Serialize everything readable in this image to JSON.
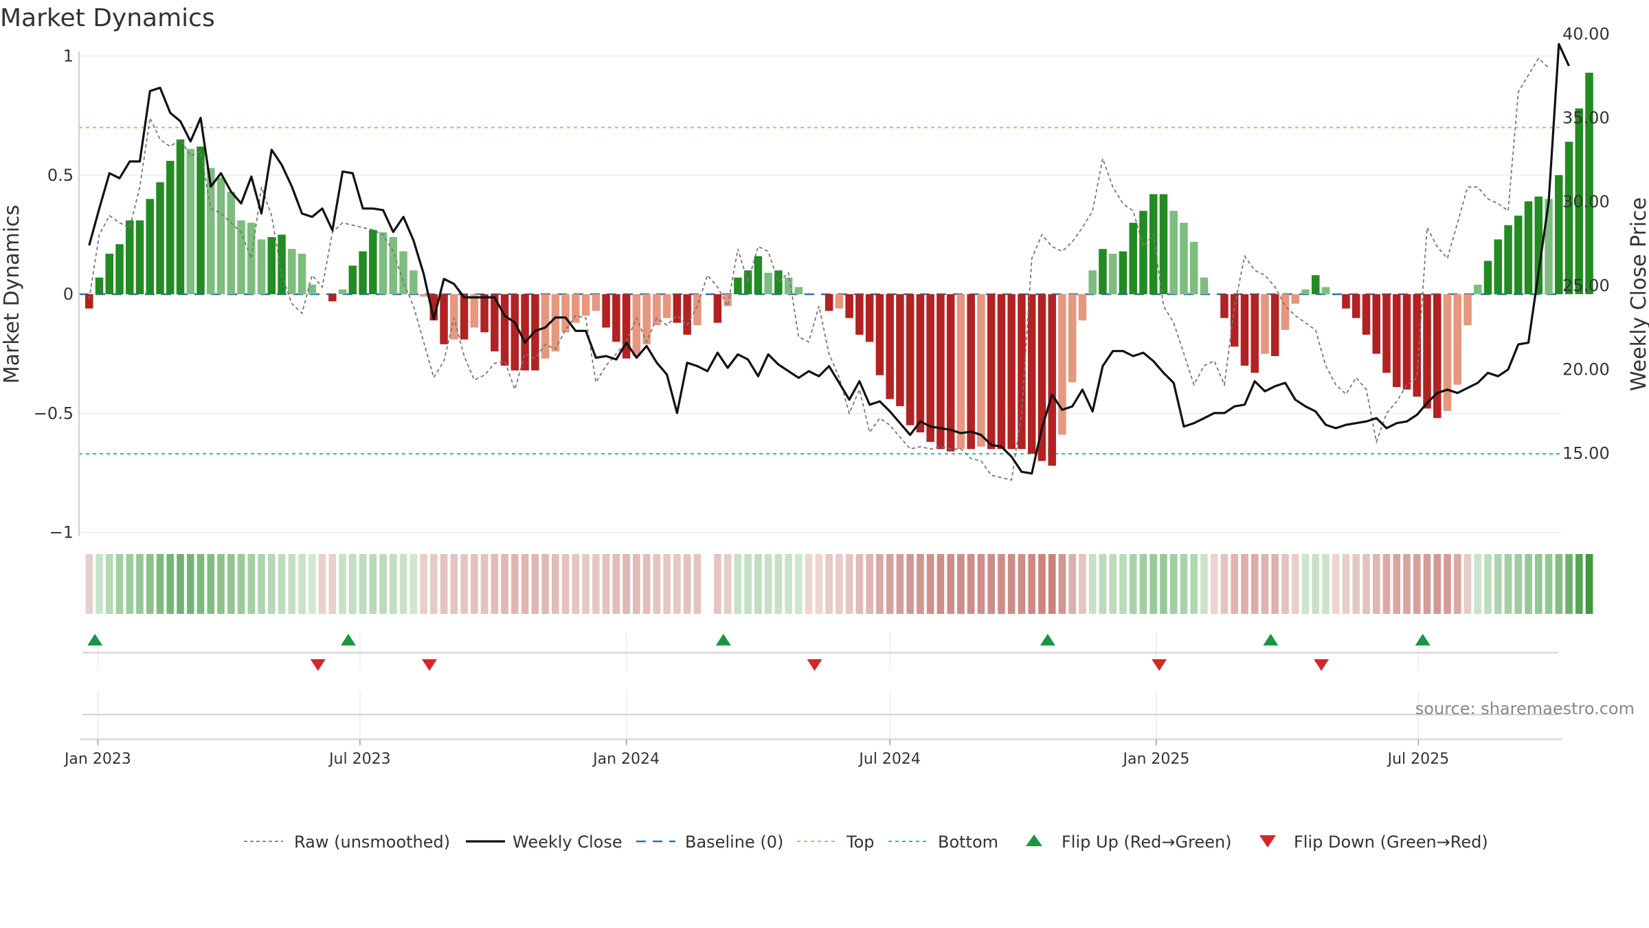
{
  "chart_data": {
    "type": "bar",
    "title": "Market Dynamics",
    "ylabel_left": "Market Dynamics",
    "ylabel_right": "Weekly Close Price",
    "source": "source: sharemaestro.com",
    "y_left_range": [
      -1,
      1
    ],
    "y_right_range": [
      11.2,
      40.8
    ],
    "x_range": [
      "2022-12-19",
      "2025-10-08"
    ],
    "left_ticks": [
      {
        "v": 1,
        "label": "1"
      },
      {
        "v": 0.5,
        "label": "0.5"
      },
      {
        "v": 0,
        "label": "0"
      },
      {
        "v": -0.5,
        "label": "−0.5"
      },
      {
        "v": -1,
        "label": "−1"
      }
    ],
    "right_ticks": [
      {
        "v": 40,
        "label": "40.00"
      },
      {
        "v": 35,
        "label": "35.00"
      },
      {
        "v": 30,
        "label": "30.00"
      },
      {
        "v": 25,
        "label": "25.00"
      },
      {
        "v": 20,
        "label": "20.00"
      },
      {
        "v": 15,
        "label": "15.00"
      }
    ],
    "date_ticks": [
      {
        "date": "2023-01-01",
        "label": "Jan 2023"
      },
      {
        "date": "2023-07-01",
        "label": "Jul 2023"
      },
      {
        "date": "2024-01-01",
        "label": "Jan 2024"
      },
      {
        "date": "2024-07-01",
        "label": "Jul 2024"
      },
      {
        "date": "2025-01-01",
        "label": "Jan 2025"
      },
      {
        "date": "2025-07-01",
        "label": "Jul 2025"
      }
    ],
    "grid": true,
    "legend_position": "bottom",
    "levels": {
      "top": 0.7,
      "bottom": -0.67,
      "baseline": 0
    },
    "colors": {
      "green_strong": "#228b22",
      "green_light": "#7dbd7d",
      "red_strong": "#b22222",
      "red_light": "#e6977e",
      "raw": "#777777",
      "close": "#111111",
      "baseline": "#1f77b4",
      "top": "#f4a261",
      "bottom": "#17becf",
      "flip_up": "#1a9641",
      "flip_down": "#d62728"
    },
    "week_start": "2022-12-26",
    "bars": [
      -0.06,
      0.07,
      0.17,
      0.21,
      0.31,
      0.31,
      0.4,
      0.47,
      0.56,
      0.65,
      0.61,
      0.62,
      0.53,
      0.49,
      0.43,
      0.31,
      0.3,
      0.23,
      0.24,
      0.25,
      0.19,
      0.17,
      0.04,
      0.0,
      -0.03,
      0.02,
      0.12,
      0.18,
      0.27,
      0.26,
      0.24,
      0.18,
      0.1,
      -0.01,
      -0.11,
      -0.21,
      -0.19,
      -0.19,
      -0.14,
      -0.16,
      -0.24,
      -0.3,
      -0.32,
      -0.32,
      -0.32,
      -0.27,
      -0.24,
      -0.16,
      -0.12,
      -0.09,
      -0.07,
      -0.14,
      -0.2,
      -0.27,
      -0.26,
      -0.21,
      -0.13,
      -0.1,
      -0.12,
      -0.17,
      -0.13,
      0.0,
      -0.12,
      -0.05,
      0.07,
      0.1,
      0.16,
      0.09,
      0.1,
      0.07,
      0.03,
      0.0,
      0.0,
      -0.07,
      -0.06,
      -0.1,
      -0.17,
      -0.2,
      -0.34,
      -0.44,
      -0.47,
      -0.55,
      -0.58,
      -0.62,
      -0.65,
      -0.66,
      -0.65,
      -0.65,
      -0.64,
      -0.65,
      -0.65,
      -0.65,
      -0.65,
      -0.67,
      -0.7,
      -0.72,
      -0.59,
      -0.37,
      -0.11,
      0.1,
      0.19,
      0.17,
      0.18,
      0.3,
      0.35,
      0.42,
      0.42,
      0.35,
      0.3,
      0.22,
      0.07,
      0.0,
      -0.1,
      -0.22,
      -0.3,
      -0.33,
      -0.25,
      -0.26,
      -0.15,
      -0.04,
      0.02,
      0.08,
      0.03,
      0.0,
      -0.06,
      -0.1,
      -0.17,
      -0.25,
      -0.33,
      -0.39,
      -0.4,
      -0.43,
      -0.48,
      -0.52,
      -0.49,
      -0.38,
      -0.13,
      0.04,
      0.14,
      0.23,
      0.29,
      0.33,
      0.39,
      0.41,
      0.4,
      0.5,
      0.64,
      0.78,
      0.93
    ],
    "raw": [
      -0.02,
      0.25,
      0.33,
      0.3,
      0.28,
      0.45,
      0.74,
      0.65,
      0.62,
      0.65,
      0.58,
      0.6,
      0.36,
      0.34,
      0.3,
      0.26,
      0.15,
      0.45,
      0.33,
      0.08,
      -0.04,
      -0.08,
      0.08,
      0.03,
      0.26,
      0.3,
      0.29,
      0.28,
      0.27,
      0.25,
      0.18,
      0.05,
      -0.05,
      -0.2,
      -0.35,
      -0.28,
      -0.1,
      -0.26,
      -0.36,
      -0.34,
      -0.29,
      -0.28,
      -0.4,
      -0.25,
      -0.27,
      -0.21,
      -0.23,
      -0.15,
      -0.09,
      -0.1,
      -0.37,
      -0.3,
      -0.25,
      -0.2,
      -0.1,
      -0.2,
      -0.1,
      -0.13,
      -0.09,
      -0.13,
      -0.05,
      0.08,
      0.03,
      -0.05,
      0.19,
      0.05,
      0.2,
      0.18,
      0.05,
      0.09,
      -0.18,
      -0.2,
      -0.05,
      -0.25,
      -0.35,
      -0.5,
      -0.4,
      -0.58,
      -0.52,
      -0.55,
      -0.6,
      -0.65,
      -0.64,
      -0.65,
      -0.64,
      -0.65,
      -0.65,
      -0.69,
      -0.7,
      -0.76,
      -0.77,
      -0.78,
      -0.5,
      0.15,
      0.25,
      0.2,
      0.18,
      0.22,
      0.28,
      0.35,
      0.57,
      0.45,
      0.38,
      0.35,
      0.2,
      0.25,
      -0.05,
      -0.12,
      -0.25,
      -0.38,
      -0.3,
      -0.28,
      -0.38,
      -0.05,
      0.16,
      0.1,
      0.08,
      0.03,
      -0.05,
      -0.09,
      -0.12,
      -0.15,
      -0.3,
      -0.38,
      -0.42,
      -0.35,
      -0.4,
      -0.62,
      -0.5,
      -0.45,
      -0.38,
      -0.35,
      0.28,
      0.2,
      0.15,
      0.3,
      0.45,
      0.45,
      0.4,
      0.38,
      0.35,
      0.85,
      0.92,
      0.99,
      0.95
    ],
    "close": [
      27.4,
      29.6,
      31.7,
      31.4,
      32.4,
      32.4,
      36.6,
      36.8,
      35.3,
      34.8,
      33.6,
      35.0,
      30.9,
      31.7,
      30.6,
      29.9,
      31.5,
      29.3,
      33.1,
      32.2,
      30.9,
      29.3,
      29.1,
      29.6,
      28.3,
      31.8,
      31.7,
      29.6,
      29.6,
      29.5,
      28.2,
      29.1,
      27.7,
      25.7,
      23.0,
      25.4,
      25.1,
      24.3,
      24.3,
      24.3,
      24.3,
      23.2,
      22.8,
      21.6,
      22.3,
      22.5,
      23.1,
      23.1,
      22.3,
      22.3,
      20.7,
      20.8,
      20.6,
      21.6,
      20.7,
      21.4,
      20.4,
      19.7,
      17.4,
      20.4,
      20.2,
      19.9,
      21.0,
      20.1,
      20.9,
      20.6,
      19.6,
      20.9,
      20.3,
      19.9,
      19.5,
      19.9,
      19.6,
      20.2,
      19.2,
      18.2,
      19.3,
      17.9,
      18.1,
      17.5,
      16.8,
      16.1,
      16.9,
      16.6,
      16.5,
      16.4,
      16.2,
      16.3,
      16.1,
      15.5,
      15.4,
      14.8,
      13.9,
      13.8,
      16.5,
      18.5,
      17.6,
      17.8,
      18.8,
      17.5,
      20.2,
      21.1,
      21.1,
      20.8,
      21.0,
      20.5,
      19.8,
      19.2,
      16.6,
      16.8,
      17.1,
      17.4,
      17.4,
      17.8,
      17.9,
      19.3,
      18.7,
      19.0,
      19.2,
      18.2,
      17.8,
      17.5,
      16.7,
      16.5,
      16.7,
      16.8,
      16.9,
      17.1,
      16.5,
      16.8,
      16.9,
      17.3,
      18.0,
      18.6,
      18.8,
      18.6,
      18.9,
      19.2,
      19.8,
      19.6,
      20.0,
      21.5,
      21.6,
      25.8,
      30.0,
      39.4,
      38.1
    ],
    "strip_shades": [
      "#e8cfcc",
      "#c9e3c9",
      "#b6dab6",
      "#a3d0a3",
      "#9fcc9f",
      "#96c896",
      "#8ac28a",
      "#7dbb7d",
      "#75b675",
      "#6fb26f",
      "#74b574",
      "#7cba7c",
      "#83bd83",
      "#8cc28c",
      "#91c591",
      "#9bca9b",
      "#a5cfa5",
      "#aed4ae",
      "#b6d8b6",
      "#bddcbd",
      "#c3dfc3",
      "#c9e3c9",
      "#d2e7d2",
      "#e9d0cd",
      "#e8d0cd",
      "#c7e2c7",
      "#c1dfc1",
      "#bcdcbc",
      "#b9dab9",
      "#bcdcbc",
      "#c1dfc1",
      "#c8e2c8",
      "#d0e6d0",
      "#e6cfcc",
      "#e6cac7",
      "#e4c4c1",
      "#e4c4c1",
      "#e4c4c1",
      "#e3c3c0",
      "#e3c1be",
      "#e1bcb9",
      "#e0b8b5",
      "#dfb6b3",
      "#dfb6b3",
      "#dfb6b3",
      "#e0b9b6",
      "#e1bcb9",
      "#e3c2bf",
      "#e4c5c2",
      "#e5c8c5",
      "#e6c9c6",
      "#e3c2bf",
      "#e1bdba",
      "#e0b8b5",
      "#e0b9b6",
      "#e2bdba",
      "#e4c4c1",
      "#e5c8c5",
      "#e5c7c4",
      "#e3c2bf",
      "#e4c5c2",
      "#ffffff",
      "#e4c5c2",
      "#e6cbc8",
      "#c8e2c8",
      "#c4e0c4",
      "#bfddbf",
      "#c5e1c5",
      "#c6e1c6",
      "#c9e3c9",
      "#cfe5cf",
      "#ebd4d1",
      "#ebd4d1",
      "#e6cac7",
      "#e6cbc8",
      "#e4c6c3",
      "#e0bbb8",
      "#dfb6b3",
      "#d9a8a4",
      "#d5a09c",
      "#d49d99",
      "#d29793",
      "#d1948f",
      "#cf908b",
      "#ce8d88",
      "#ce8c87",
      "#ce8d88",
      "#ce8d88",
      "#ce8e89",
      "#ce8d88",
      "#ce8d88",
      "#ce8d88",
      "#ce8d88",
      "#cd8a85",
      "#cb8580",
      "#ca827d",
      "#d09690",
      "#dcb0ac",
      "#e4c5c2",
      "#c5e1c5",
      "#badbba",
      "#bcdcbc",
      "#bbdbbb",
      "#a9d2a9",
      "#a2cea2",
      "#99c999",
      "#99c999",
      "#a2cea2",
      "#a9d2a9",
      "#b3d7b3",
      "#cae3ca",
      "#ebd4d1",
      "#e4c4c1",
      "#dfb6b3",
      "#dcb0ac",
      "#dbaca8",
      "#deb3af",
      "#ddb1ad",
      "#e3c2bf",
      "#e8cfcc",
      "#cde4cd",
      "#c7e2c7",
      "#cbe3cb",
      "#ebd4d1",
      "#e7cdca",
      "#e5c8c5",
      "#e3c2bf",
      "#dfb6b3",
      "#dba9a5",
      "#d8a5a1",
      "#d8a4a0",
      "#d6a19d",
      "#d49d99",
      "#d29894",
      "#d49b97",
      "#d9a8a4",
      "#e6cbc8",
      "#cbe3cb",
      "#bcdcbc",
      "#aed4ae",
      "#a4cfa4",
      "#9fcc9f",
      "#96c896",
      "#94c694",
      "#95c795",
      "#84be84",
      "#6db16d",
      "#55a555",
      "#3d9a3d"
    ],
    "flips_up": [
      "2022-12-30",
      "2023-06-23",
      "2024-03-08",
      "2024-10-18",
      "2025-03-21",
      "2025-07-04"
    ],
    "flips_down": [
      "2023-06-02",
      "2023-08-18",
      "2024-05-10",
      "2025-01-03",
      "2025-04-25"
    ],
    "legend": [
      {
        "type": "raw",
        "label": "Raw (unsmoothed)"
      },
      {
        "type": "close",
        "label": "Weekly Close"
      },
      {
        "type": "baseline",
        "label": "Baseline (0)"
      },
      {
        "type": "top",
        "label": "Top"
      },
      {
        "type": "bottom",
        "label": "Bottom"
      },
      {
        "type": "flip_up",
        "label": "Flip Up (Red→Green)"
      },
      {
        "type": "flip_down",
        "label": "Flip Down (Green→Red)"
      }
    ]
  }
}
